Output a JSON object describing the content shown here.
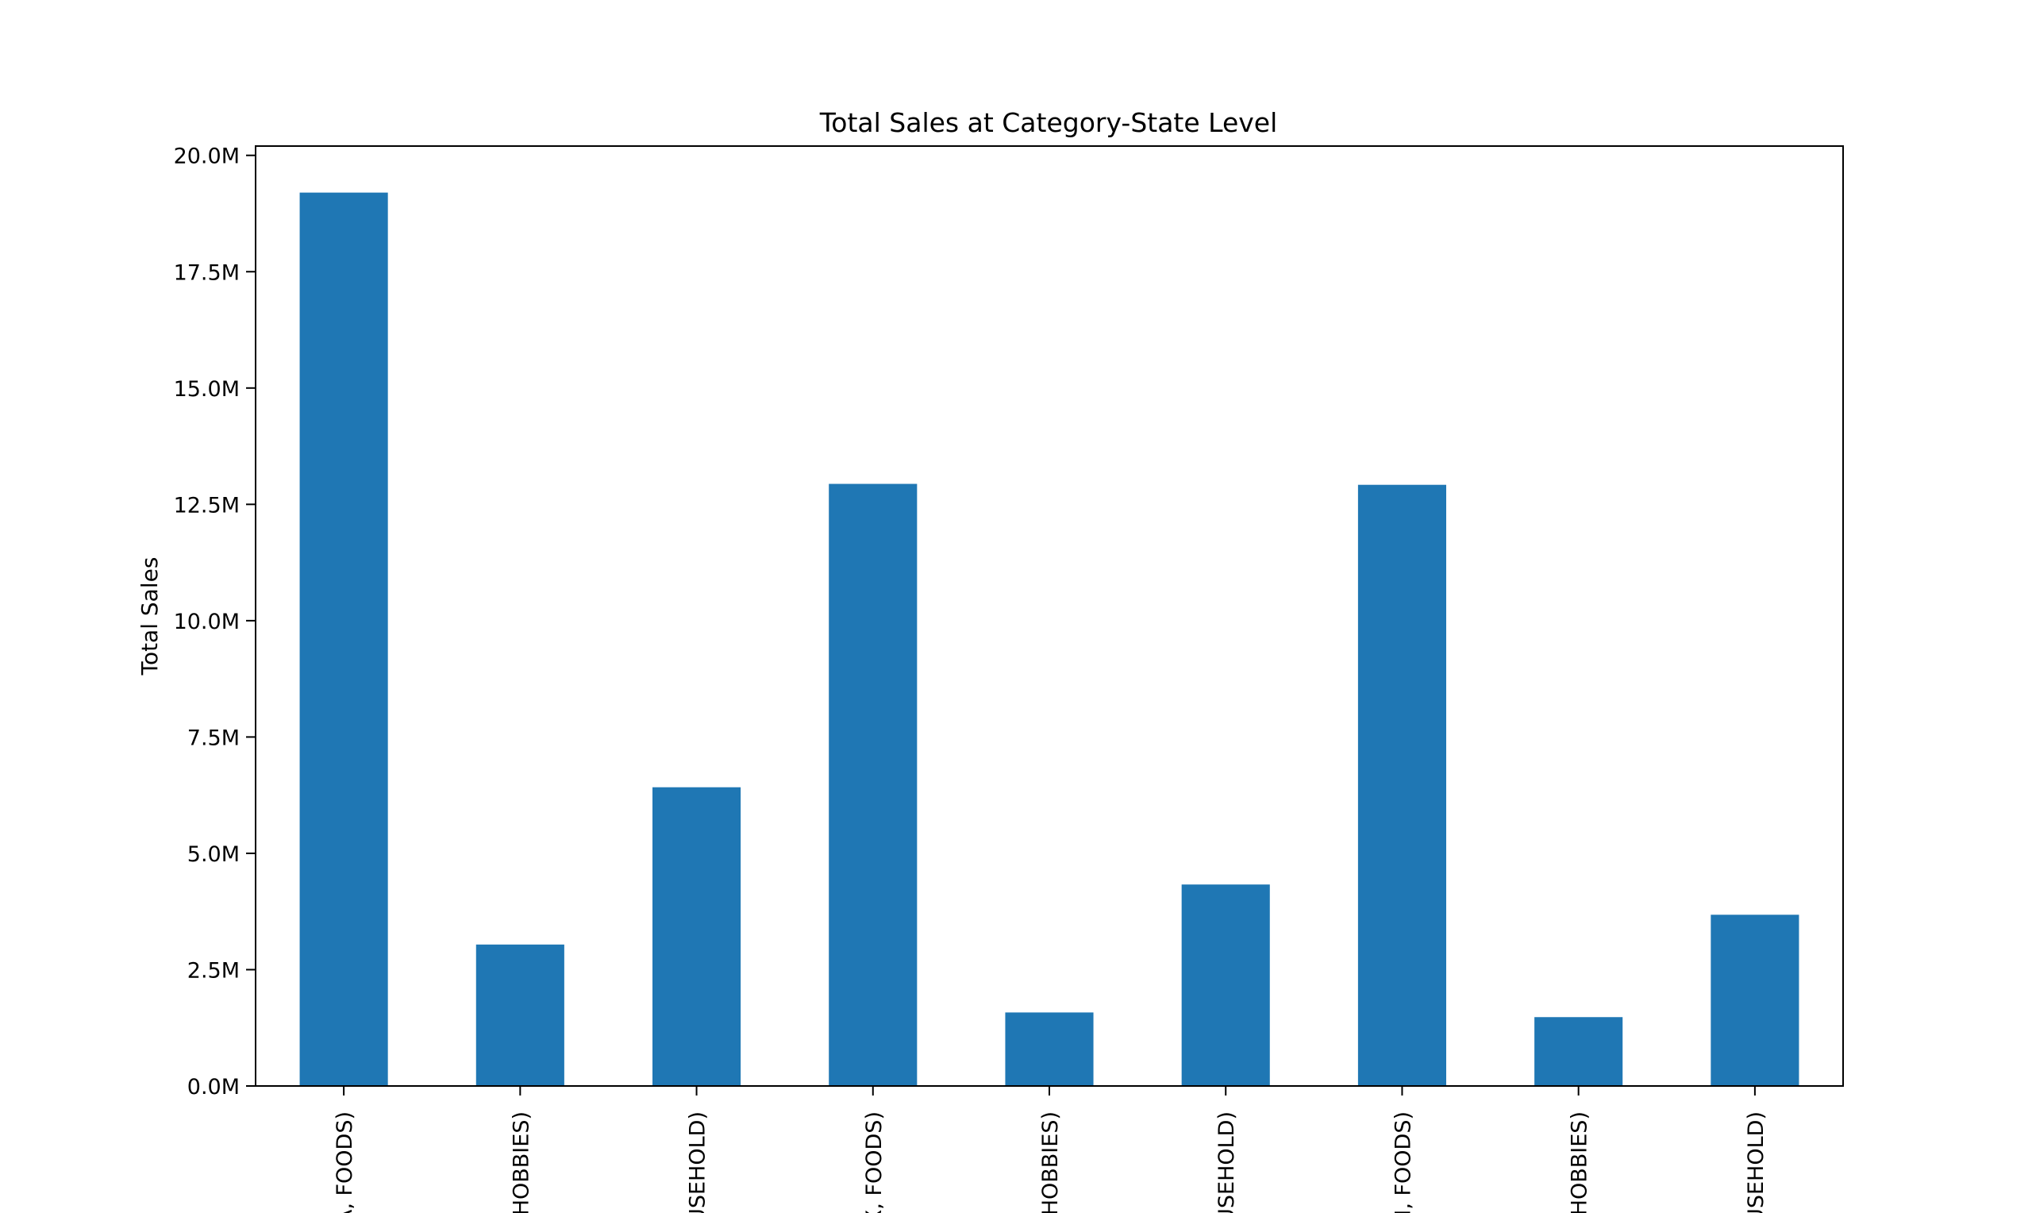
{
  "chart_data": {
    "type": "bar",
    "title": "Total Sales at Category-State Level",
    "xlabel": "",
    "ylabel": "Total Sales",
    "ylim": [
      0,
      20.2
    ],
    "unit_suffix": "M",
    "yticks": [
      0,
      2.5,
      5,
      7.5,
      10,
      12.5,
      15,
      17.5,
      20
    ],
    "ytick_labels": [
      "0.0M",
      "2.5M",
      "5.0M",
      "7.5M",
      "10.0M",
      "12.5M",
      "15.0M",
      "17.5M",
      "20.0M"
    ],
    "categories": [
      "(CA, FOODS)",
      "(CA, HOBBIES)",
      "(CA, HOUSEHOLD)",
      "(TX, FOODS)",
      "(TX, HOBBIES)",
      "(TX, HOUSEHOLD)",
      "(WI, FOODS)",
      "(WI, HOBBIES)",
      "(WI, HOUSEHOLD)"
    ],
    "category_labels_visible": [
      "A, FOODS)",
      "HOBBIES)",
      "USEHOLD)",
      "X, FOODS)",
      ", HOBBIES)",
      "USEHOLD)",
      "WI, FOODS)",
      ", HOBBIES)",
      "USEHOLD)"
    ],
    "values": [
      19.2,
      3.04,
      6.42,
      12.94,
      1.58,
      4.33,
      12.92,
      1.48,
      3.68
    ],
    "bar_color": "#1f77b4",
    "grid": false,
    "legend": "none"
  }
}
